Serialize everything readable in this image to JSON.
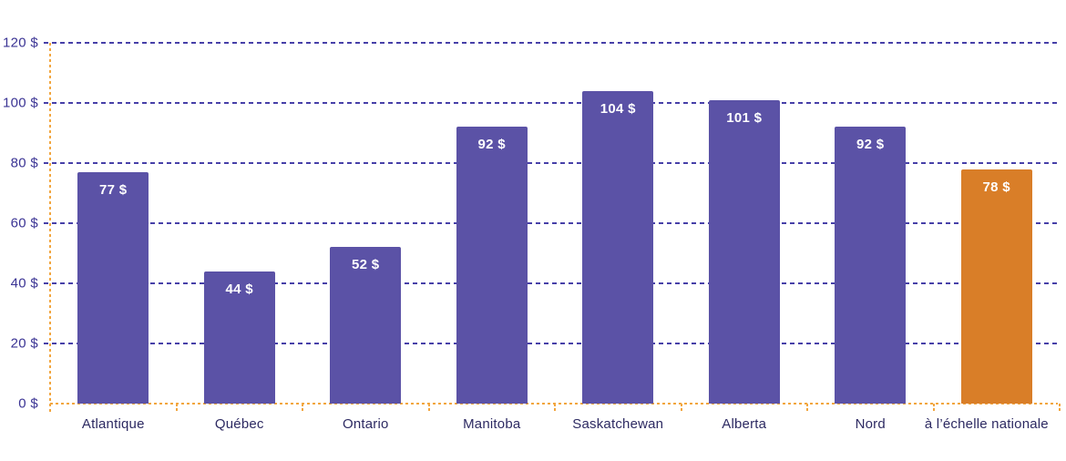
{
  "chart_data": {
    "type": "bar",
    "title": "",
    "xlabel": "",
    "ylabel": "",
    "categories": [
      "Atlantique",
      "Québec",
      "Ontario",
      "Manitoba",
      "Saskatchewan",
      "Alberta",
      "Nord",
      "à l’échelle nationale"
    ],
    "values": [
      77,
      44,
      52,
      92,
      104,
      101,
      92,
      78
    ],
    "bar_labels": [
      "77 $",
      "44 $",
      "52 $",
      "92 $",
      "104 $",
      "101 $",
      "92 $",
      "78 $"
    ],
    "bar_colors": [
      "#5b52a6",
      "#5b52a6",
      "#5b52a6",
      "#5b52a6",
      "#5b52a6",
      "#5b52a6",
      "#5b52a6",
      "#d97e28"
    ],
    "highlighted_category": "à l’échelle nationale",
    "y_ticks": [
      {
        "value": 0,
        "label": "0 $"
      },
      {
        "value": 20,
        "label": "20 $"
      },
      {
        "value": 40,
        "label": "40 $"
      },
      {
        "value": 60,
        "label": "60 $"
      },
      {
        "value": 80,
        "label": "80 $"
      },
      {
        "value": 100,
        "label": "100 $"
      },
      {
        "value": 120,
        "label": "120 $"
      }
    ],
    "ylim": [
      0,
      120
    ],
    "grid": "horizontal-dashed",
    "legend_position": "none",
    "colors": {
      "bar_default": "#5b52a6",
      "bar_highlight": "#d97e28",
      "axis_line": "#f2a63f",
      "gridline": "#4740a8",
      "y_tick_label": "#3b3494",
      "x_tick_label": "#2d2a62",
      "value_label": "#ffffff",
      "background": "#ffffff"
    }
  }
}
